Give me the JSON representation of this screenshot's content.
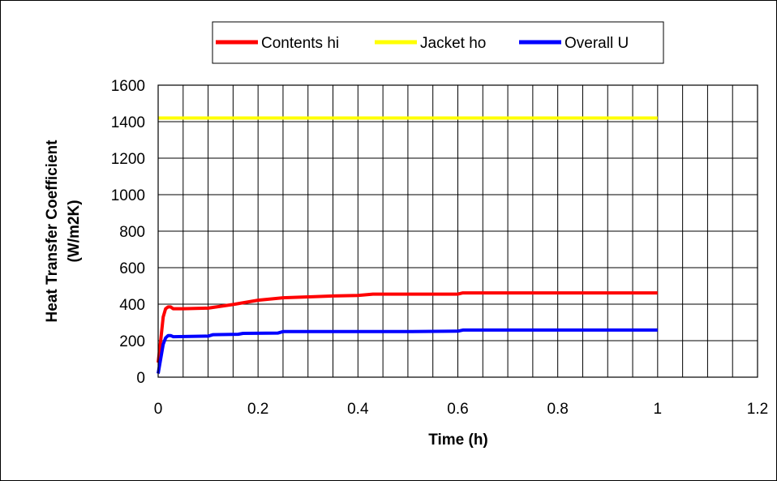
{
  "chart_data": {
    "type": "line",
    "title": "",
    "xlabel": "Time (h)",
    "ylabel_line1": "Heat Transfer Coefficient",
    "ylabel_line2": "(W/m2K)",
    "xlim": [
      0,
      1.2
    ],
    "ylim": [
      0,
      1600
    ],
    "x_ticks": [
      0,
      0.2,
      0.4,
      0.6,
      0.8,
      1,
      1.2
    ],
    "x_tick_labels": [
      "0",
      "0.2",
      "0.4",
      "0.6",
      "0.8",
      "1",
      "1.2"
    ],
    "y_ticks": [
      0,
      200,
      400,
      600,
      800,
      1000,
      1200,
      1400,
      1600
    ],
    "y_tick_labels": [
      "0",
      "200",
      "400",
      "600",
      "800",
      "1000",
      "1200",
      "1400",
      "1600"
    ],
    "grid": true,
    "vertical_grid_step": 0.05,
    "legend_position": "top",
    "series": [
      {
        "name": "Contents hi",
        "color": "#ff0000",
        "points": [
          [
            0,
            80
          ],
          [
            0.005,
            200
          ],
          [
            0.01,
            330
          ],
          [
            0.015,
            375
          ],
          [
            0.02,
            385
          ],
          [
            0.025,
            385
          ],
          [
            0.03,
            375
          ],
          [
            0.05,
            375
          ],
          [
            0.1,
            378
          ],
          [
            0.15,
            398
          ],
          [
            0.2,
            422
          ],
          [
            0.25,
            435
          ],
          [
            0.3,
            440
          ],
          [
            0.35,
            445
          ],
          [
            0.4,
            448
          ],
          [
            0.43,
            455
          ],
          [
            0.5,
            455
          ],
          [
            0.6,
            455
          ],
          [
            0.61,
            462
          ],
          [
            0.7,
            462
          ],
          [
            0.8,
            462
          ],
          [
            0.9,
            462
          ],
          [
            1.0,
            462
          ]
        ]
      },
      {
        "name": "Jacket ho",
        "color": "#ffff00",
        "points": [
          [
            0,
            1420
          ],
          [
            0.2,
            1420
          ],
          [
            0.4,
            1420
          ],
          [
            0.6,
            1420
          ],
          [
            0.8,
            1420
          ],
          [
            1.0,
            1420
          ]
        ]
      },
      {
        "name": "Overall U",
        "color": "#0000ff",
        "points": [
          [
            0,
            20
          ],
          [
            0.005,
            100
          ],
          [
            0.01,
            180
          ],
          [
            0.015,
            215
          ],
          [
            0.02,
            228
          ],
          [
            0.025,
            228
          ],
          [
            0.03,
            222
          ],
          [
            0.1,
            225
          ],
          [
            0.11,
            233
          ],
          [
            0.16,
            235
          ],
          [
            0.17,
            240
          ],
          [
            0.24,
            242
          ],
          [
            0.25,
            250
          ],
          [
            0.5,
            250
          ],
          [
            0.6,
            252
          ],
          [
            0.61,
            258
          ],
          [
            0.8,
            258
          ],
          [
            1.0,
            258
          ]
        ]
      }
    ]
  }
}
